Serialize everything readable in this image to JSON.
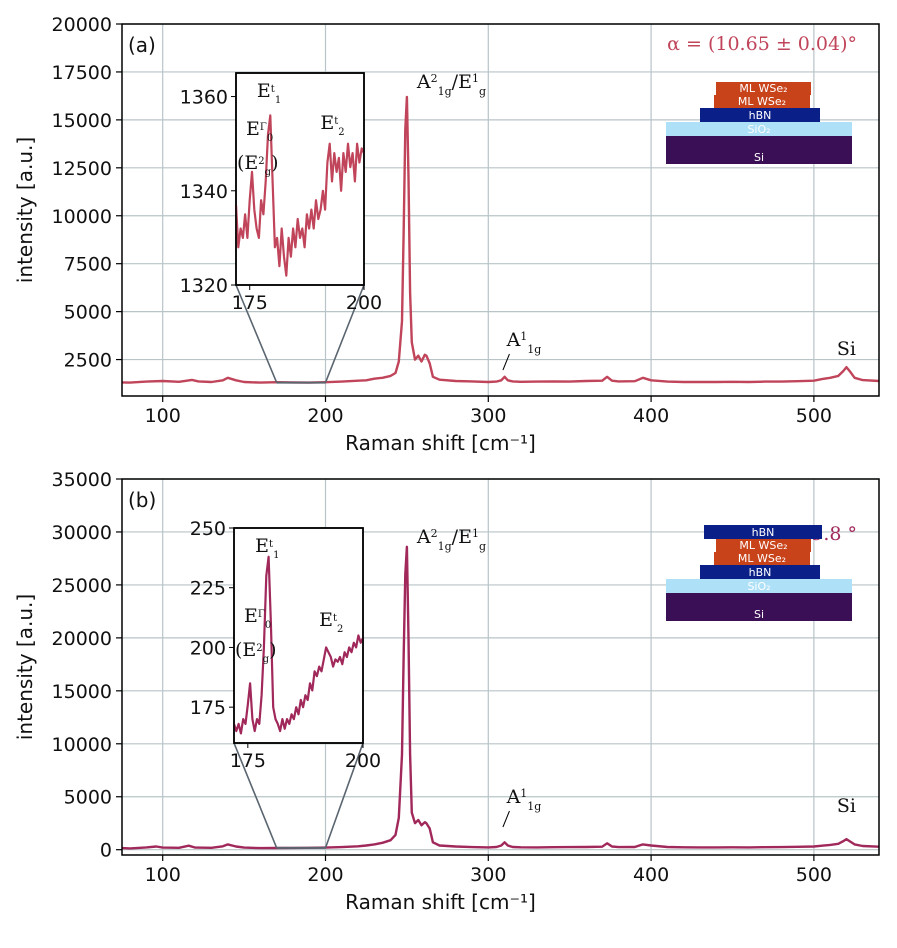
{
  "chart_data": [
    {
      "panel": "(a)",
      "type": "line",
      "xlabel": "Raman shift [cm⁻¹]",
      "ylabel": "intensity [a.u.]",
      "xlim": [
        75,
        540
      ],
      "ylim": [
        600,
        20000
      ],
      "xticks": [
        100,
        200,
        300,
        400,
        500
      ],
      "yticks": [
        2500,
        5000,
        7500,
        10000,
        12500,
        15000,
        17500,
        20000
      ],
      "grid": true,
      "color": "#c0445a",
      "angle": "α = (10.65 ± 0.04)°",
      "series": [
        {
          "x": [
            75,
            80,
            90,
            100,
            110,
            118,
            122,
            130,
            137,
            140,
            145,
            150,
            160,
            170,
            180,
            190,
            200,
            210,
            220,
            225,
            230,
            235,
            240,
            243,
            245,
            247,
            248,
            249,
            250,
            251,
            252,
            253,
            255,
            257,
            259,
            261,
            262,
            264,
            266,
            270,
            280,
            290,
            300,
            305,
            308,
            310,
            312,
            315,
            320,
            330,
            340,
            350,
            360,
            370,
            373,
            376,
            380,
            390,
            395,
            400,
            410,
            420,
            430,
            440,
            450,
            460,
            470,
            480,
            490,
            500,
            505,
            510,
            515,
            518,
            520,
            522,
            525,
            530,
            540
          ],
          "y": [
            1310,
            1300,
            1350,
            1380,
            1340,
            1440,
            1360,
            1330,
            1420,
            1550,
            1420,
            1330,
            1300,
            1320,
            1310,
            1300,
            1320,
            1350,
            1400,
            1420,
            1500,
            1550,
            1650,
            1800,
            2400,
            4500,
            9000,
            14500,
            16200,
            12000,
            6000,
            3400,
            2500,
            2700,
            2400,
            2750,
            2700,
            2300,
            1600,
            1450,
            1380,
            1360,
            1330,
            1350,
            1420,
            1600,
            1420,
            1360,
            1340,
            1350,
            1360,
            1350,
            1380,
            1400,
            1600,
            1400,
            1360,
            1370,
            1550,
            1420,
            1350,
            1330,
            1330,
            1330,
            1340,
            1330,
            1350,
            1350,
            1370,
            1400,
            1480,
            1550,
            1650,
            1900,
            2100,
            1900,
            1550,
            1430,
            1380
          ]
        }
      ],
      "annotations": [
        "A²₁g/E¹g",
        "A¹₁g",
        "Si"
      ],
      "peak_labels": {
        "a1g2_main": "A",
        "a1g2_sup": "2",
        "a1g2_sub": "1g",
        "eg1_main": "/E",
        "eg1_sup": "1",
        "eg1_sub": "g",
        "a1g1_main": "A",
        "a1g1_sup": "1",
        "a1g1_sub": "1g",
        "si": "Si"
      },
      "inset": {
        "xlim": [
          172,
          200
        ],
        "ylim": [
          1320,
          1365
        ],
        "xticks": [
          175,
          200
        ],
        "yticks": [
          1320,
          1340,
          1360
        ],
        "labels": {
          "e1_main": "E",
          "e1_sup": "t",
          "e1_sub": "1",
          "e0_main": "E",
          "e0_sup": "Γ",
          "e0_sub": "0",
          "eg2_open": "(E",
          "eg2_sup": "2",
          "eg2_sub": "g",
          "eg2_close": ")",
          "e2_main": "E",
          "e2_sup": "t",
          "e2_sub": "2"
        },
        "series": {
          "x": [
            172,
            172.5,
            173,
            173.5,
            174,
            174.5,
            175,
            175.5,
            176,
            176.5,
            177,
            177.5,
            178,
            178.5,
            179,
            179.5,
            180,
            180.5,
            181,
            181.5,
            182,
            182.5,
            183,
            183.5,
            184,
            184.5,
            185,
            185.5,
            186,
            186.5,
            187,
            187.5,
            188,
            188.5,
            189,
            189.5,
            190,
            190.5,
            191,
            191.5,
            192,
            192.5,
            193,
            193.5,
            194,
            194.5,
            195,
            195.5,
            196,
            196.5,
            197,
            197.5,
            198,
            198.5,
            199,
            199.5,
            200
          ],
          "y": [
            1337,
            1328,
            1332,
            1330,
            1335,
            1330,
            1338,
            1344,
            1336,
            1332,
            1330,
            1338,
            1335,
            1342,
            1352,
            1356,
            1342,
            1328,
            1330,
            1324,
            1332,
            1326,
            1322,
            1330,
            1326,
            1332,
            1328,
            1334,
            1330,
            1332,
            1328,
            1335,
            1332,
            1336,
            1332,
            1338,
            1334,
            1336,
            1340,
            1336,
            1346,
            1350,
            1342,
            1348,
            1344,
            1347,
            1340,
            1348,
            1344,
            1350,
            1345,
            1348,
            1342,
            1350,
            1346,
            1349,
            1348
          ]
        }
      },
      "stack": [
        "ML WSe₂",
        "ML WSe₂",
        "hBN",
        "SiO₂",
        "Si"
      ]
    },
    {
      "panel": "(b)",
      "type": "line",
      "xlabel": "Raman shift [cm⁻¹]",
      "ylabel": "intensity [a.u.]",
      "xlim": [
        75,
        540
      ],
      "ylim": [
        -500,
        35000
      ],
      "xticks": [
        100,
        200,
        300,
        400,
        500
      ],
      "yticks": [
        0,
        5000,
        10000,
        15000,
        20000,
        25000,
        30000,
        35000
      ],
      "grid": true,
      "color": "#a0285a",
      "angle": "α ≈ 9.8 °",
      "series": [
        {
          "x": [
            75,
            80,
            90,
            96,
            100,
            110,
            116,
            120,
            130,
            137,
            140,
            145,
            150,
            160,
            170,
            180,
            190,
            200,
            210,
            220,
            225,
            230,
            235,
            240,
            243,
            245,
            247,
            248,
            249,
            250,
            251,
            252,
            253,
            255,
            257,
            259,
            261,
            262,
            264,
            266,
            270,
            280,
            290,
            300,
            305,
            308,
            310,
            312,
            315,
            320,
            330,
            340,
            350,
            360,
            370,
            373,
            376,
            380,
            390,
            395,
            400,
            410,
            420,
            430,
            440,
            450,
            460,
            470,
            480,
            490,
            500,
            505,
            510,
            515,
            518,
            520,
            522,
            525,
            530,
            540
          ],
          "y": [
            150,
            120,
            220,
            300,
            200,
            180,
            380,
            200,
            180,
            320,
            500,
            300,
            200,
            150,
            160,
            170,
            180,
            200,
            250,
            320,
            400,
            500,
            650,
            900,
            1400,
            3000,
            9000,
            18000,
            26000,
            28600,
            20000,
            9000,
            3500,
            2500,
            2800,
            2300,
            2600,
            2500,
            2000,
            700,
            400,
            300,
            250,
            220,
            260,
            400,
            700,
            400,
            260,
            230,
            220,
            240,
            250,
            260,
            280,
            600,
            300,
            250,
            260,
            500,
            400,
            260,
            230,
            220,
            220,
            230,
            220,
            240,
            250,
            270,
            300,
            380,
            450,
            560,
            800,
            1000,
            800,
            500,
            350,
            280
          ]
        }
      ],
      "annotations": [
        "A²₁g/E¹g",
        "A¹₁g",
        "Si"
      ],
      "peak_labels": {
        "a1g2_main": "A",
        "a1g2_sup": "2",
        "a1g2_sub": "1g",
        "eg1_main": "/E",
        "eg1_sup": "1",
        "eg1_sub": "g",
        "a1g1_main": "A",
        "a1g1_sup": "1",
        "a1g1_sub": "1g",
        "si": "Si"
      },
      "inset": {
        "xlim": [
          172,
          200
        ],
        "ylim": [
          160,
          250
        ],
        "xticks": [
          175,
          200
        ],
        "yticks": [
          175,
          200,
          225,
          250
        ],
        "labels": {
          "e1_main": "E",
          "e1_sup": "t",
          "e1_sub": "1",
          "e0_main": "E",
          "e0_sup": "Γ",
          "e0_sub": "0",
          "eg2_open": "(E",
          "eg2_sup": "2",
          "eg2_sub": "g",
          "eg2_close": ")",
          "e2_main": "E",
          "e2_sup": "t",
          "e2_sub": "2"
        },
        "series": {
          "x": [
            172,
            172.5,
            173,
            173.5,
            174,
            174.5,
            175,
            175.5,
            176,
            176.5,
            177,
            177.5,
            178,
            178.5,
            179,
            179.5,
            180,
            180.5,
            181,
            181.5,
            182,
            182.5,
            183,
            183.5,
            184,
            184.5,
            185,
            185.5,
            186,
            186.5,
            187,
            187.5,
            188,
            188.5,
            189,
            189.5,
            190,
            190.5,
            191,
            191.5,
            192,
            192.5,
            193,
            193.5,
            194,
            194.5,
            195,
            195.5,
            196,
            196.5,
            197,
            197.5,
            198,
            198.5,
            199,
            199.5,
            200
          ],
          "y": [
            168,
            165,
            168,
            164,
            170,
            168,
            176,
            185,
            170,
            165,
            170,
            168,
            180,
            200,
            230,
            238,
            210,
            175,
            170,
            168,
            165,
            170,
            166,
            170,
            168,
            172,
            170,
            175,
            172,
            178,
            175,
            180,
            178,
            185,
            182,
            190,
            188,
            192,
            190,
            195,
            200,
            198,
            196,
            192,
            195,
            194,
            196,
            193,
            198,
            196,
            200,
            198,
            202,
            200,
            205,
            202,
            204
          ]
        }
      },
      "stack": [
        "hBN",
        "ML WSe₂",
        "ML WSe₂",
        "hBN",
        "SiO₂",
        "Si"
      ]
    }
  ]
}
